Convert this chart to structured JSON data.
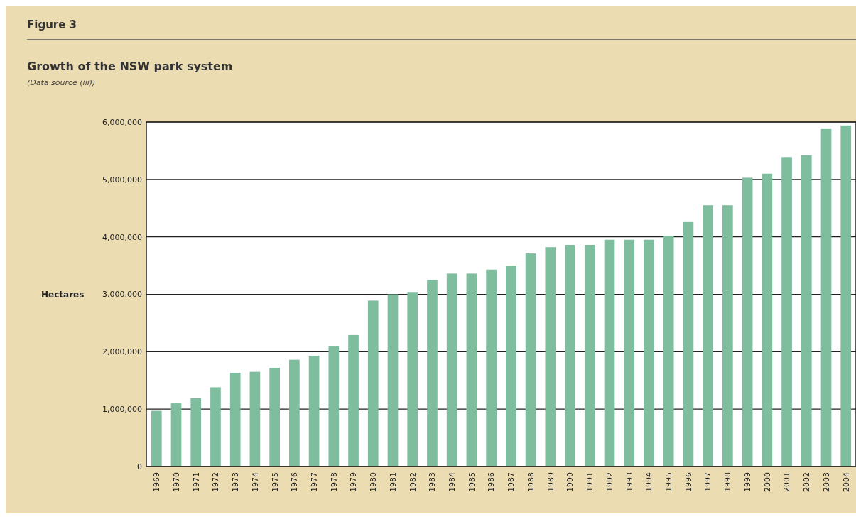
{
  "chart_data": {
    "type": "bar",
    "title": "Figure 3",
    "subtitle": "Growth of the NSW park system",
    "annotations": [
      "(Data source (iii))"
    ],
    "ylabel": "Hectares",
    "categories": [
      "1969",
      "1970",
      "1971",
      "1972",
      "1973",
      "1974",
      "1975",
      "1976",
      "1977",
      "1978",
      "1979",
      "1980",
      "1981",
      "1982",
      "1983",
      "1984",
      "1985",
      "1986",
      "1987",
      "1988",
      "1989",
      "1990",
      "1991",
      "1992",
      "1993",
      "1994",
      "1995",
      "1996",
      "1997",
      "1998",
      "1999",
      "2000",
      "2001",
      "2002",
      "2003",
      "2004"
    ],
    "values": [
      970000,
      1100000,
      1190000,
      1380000,
      1630000,
      1650000,
      1720000,
      1860000,
      1930000,
      2090000,
      2290000,
      2890000,
      3000000,
      3040000,
      3250000,
      3360000,
      3360000,
      3430000,
      3500000,
      3710000,
      3820000,
      3860000,
      3860000,
      3950000,
      3950000,
      3950000,
      4020000,
      4270000,
      4550000,
      4550000,
      5030000,
      5100000,
      5390000,
      5420000,
      5890000,
      5940000
    ],
    "color": "#7fbd9f",
    "ylim": [
      0,
      6000000
    ],
    "yticks": [
      {
        "value": 0,
        "label": "0"
      },
      {
        "value": 1000000,
        "label": "1,000,000"
      },
      {
        "value": 2000000,
        "label": "2,000,000"
      },
      {
        "value": 3000000,
        "label": "3,000,000"
      },
      {
        "value": 4000000,
        "label": "4,000,000"
      },
      {
        "value": 5000000,
        "label": "5,000,000"
      },
      {
        "value": 6000000,
        "label": "6,000,000"
      }
    ],
    "grid": "y"
  }
}
